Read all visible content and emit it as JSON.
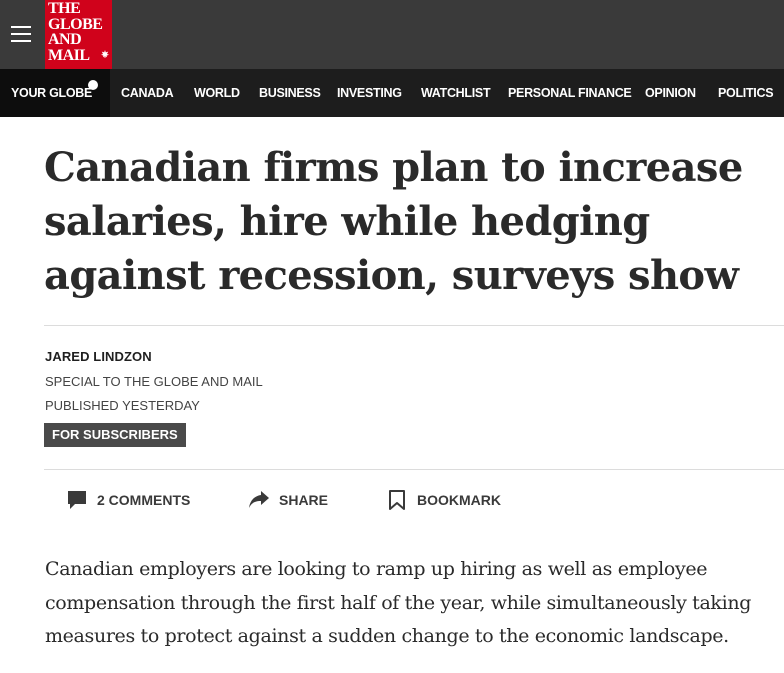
{
  "header": {
    "menu_icon": "hamburger-menu-icon",
    "logo_text": "THE\nGLOBE\nAND\nMAIL",
    "logo_mark": "maple-leaf-icon",
    "brand_color": "#d0021b"
  },
  "nav": {
    "items": [
      {
        "label": "YOUR GLOBE"
      },
      {
        "label": "CANADA"
      },
      {
        "label": "WORLD"
      },
      {
        "label": "BUSINESS"
      },
      {
        "label": "INVESTING"
      },
      {
        "label": "WATCHLIST"
      },
      {
        "label": "PERSONAL FINANCE"
      },
      {
        "label": "OPINION"
      },
      {
        "label": "POLITICS"
      }
    ]
  },
  "article": {
    "headline": "Canadian firms plan to increase salaries, hire while hedging against recession, surveys show",
    "author": "JARED LINDZON",
    "contributor_note": "SPECIAL TO THE GLOBE AND MAIL",
    "published": "PUBLISHED YESTERDAY",
    "badge": "FOR SUBSCRIBERS",
    "actions": {
      "comments": {
        "label": "2 COMMENTS",
        "icon": "comment-bubble-icon"
      },
      "share": {
        "label": "SHARE",
        "icon": "share-arrow-icon"
      },
      "bookmark": {
        "label": "BOOKMARK",
        "icon": "bookmark-icon"
      }
    },
    "body_paragraph": "Canadian employers are looking to ramp up hiring as well as employee compensation through the first half of the year, while simultaneously taking measures to protect against a sudden change to the economic landscape."
  }
}
